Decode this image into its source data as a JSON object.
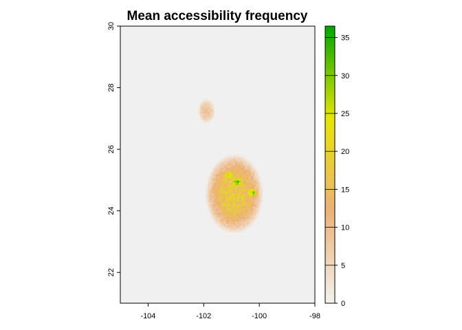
{
  "chart_data": {
    "type": "heatmap",
    "title": "Mean accessibility frequency",
    "xlabel": "",
    "ylabel": "",
    "xlim": [
      -105,
      -98
    ],
    "ylim": [
      21,
      30
    ],
    "x_ticks": [
      -104,
      -102,
      -100,
      -98
    ],
    "y_ticks": [
      22,
      24,
      26,
      28,
      30
    ],
    "x_tick_labels": [
      "-104",
      "-102",
      "-100",
      "-98"
    ],
    "y_tick_labels": [
      "22",
      "24",
      "26",
      "28",
      "30"
    ],
    "grid": false,
    "legend": {
      "type": "colorbar",
      "placement": "right",
      "range": [
        0,
        36.5
      ],
      "ticks": [
        0,
        5,
        10,
        15,
        20,
        25,
        30,
        35
      ],
      "tick_labels": [
        "0",
        "5",
        "10",
        "15",
        "20",
        "25",
        "30",
        "35"
      ],
      "colors": [
        "#f2f2f2",
        "#ecb176",
        "#e6e600",
        "#00a600"
      ]
    },
    "background_value_color": "#f0f0f0",
    "regions": [
      {
        "name_hint": "",
        "center": [
          -101.9,
          27.25
        ],
        "peak_value": 8,
        "extent": [
          0.3,
          0.4
        ]
      },
      {
        "name_hint": "",
        "center": [
          -100.9,
          24.55
        ],
        "peak_value": 17,
        "extent": [
          1.05,
          1.3
        ]
      }
    ],
    "hotspots": [
      {
        "center": [
          -100.8,
          24.95
        ],
        "value": 32
      },
      {
        "center": [
          -100.25,
          24.6
        ],
        "value": 28
      },
      {
        "center": [
          -101.1,
          25.15
        ],
        "value": 25
      }
    ]
  }
}
